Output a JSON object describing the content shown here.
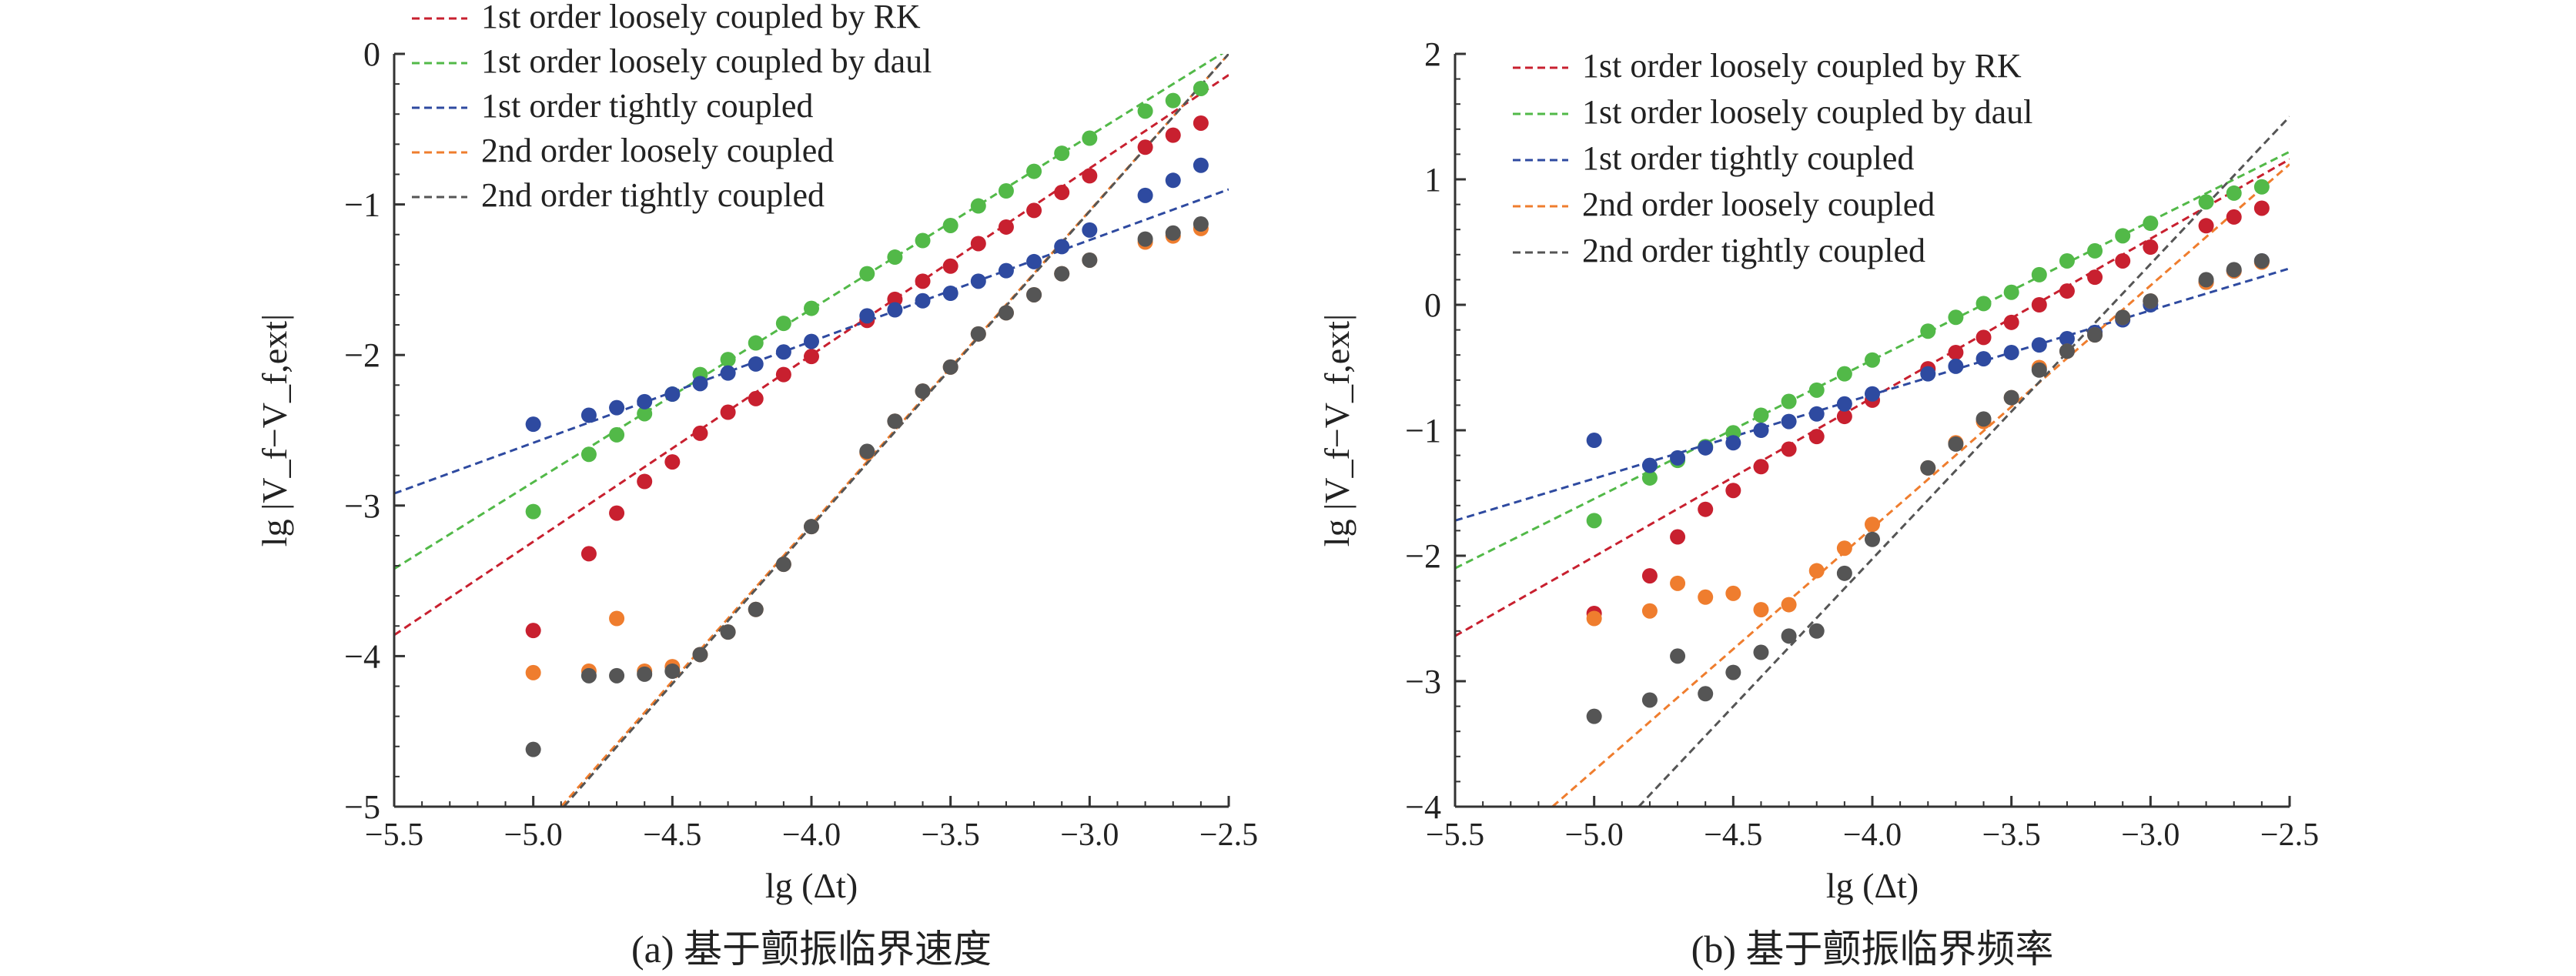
{
  "chart_data": [
    {
      "type": "scatter",
      "caption": "(a) 基于颤振临界速度",
      "xlabel": "lg (Δt)",
      "ylabel": "lg |V_f−V_f,ext|",
      "xlim": [
        -5.5,
        -2.5
      ],
      "ylim": [
        -5,
        0
      ],
      "xticks": [
        -5.5,
        -5.0,
        -4.5,
        -4.0,
        -3.5,
        -3.0,
        -2.5
      ],
      "xtick_labels": [
        "−5.5",
        "−5.0",
        "−4.5",
        "−4.0",
        "−3.5",
        "−3.0",
        "−2.5"
      ],
      "yticks": [
        -5,
        -4,
        -3,
        -2,
        -1,
        0
      ],
      "ytick_labels": [
        "−5",
        "−4",
        "−3",
        "−2",
        "−1",
        "0"
      ],
      "grid": false,
      "legend_position": "top-left",
      "series": [
        {
          "name": "1st order loosely coupled by RK",
          "color": "#c8202f",
          "x": [
            -5.0,
            -4.8,
            -4.7,
            -4.6,
            -4.5,
            -4.4,
            -4.3,
            -4.2,
            -4.1,
            -4.0,
            -3.8,
            -3.7,
            -3.6,
            -3.5,
            -3.4,
            -3.3,
            -3.2,
            -3.1,
            -3.0,
            -2.8,
            -2.7,
            -2.6
          ],
          "y": [
            -3.83,
            -3.32,
            -3.05,
            -2.84,
            -2.71,
            -2.52,
            -2.38,
            -2.29,
            -2.13,
            -2.01,
            -1.77,
            -1.63,
            -1.51,
            -1.41,
            -1.26,
            -1.15,
            -1.04,
            -0.92,
            -0.81,
            -0.62,
            -0.54,
            -0.46
          ],
          "fit": {
            "x": [
              -5.5,
              -2.5
            ],
            "y": [
              -3.86,
              -0.14
            ]
          }
        },
        {
          "name": "1st order loosely coupled by daul",
          "color": "#52b948",
          "x": [
            -5.0,
            -4.8,
            -4.7,
            -4.6,
            -4.5,
            -4.4,
            -4.3,
            -4.2,
            -4.1,
            -4.0,
            -3.8,
            -3.7,
            -3.6,
            -3.5,
            -3.4,
            -3.3,
            -3.2,
            -3.1,
            -3.0,
            -2.8,
            -2.7,
            -2.6
          ],
          "y": [
            -3.04,
            -2.66,
            -2.53,
            -2.39,
            -2.26,
            -2.13,
            -2.03,
            -1.92,
            -1.79,
            -1.69,
            -1.46,
            -1.35,
            -1.24,
            -1.14,
            -1.01,
            -0.91,
            -0.78,
            -0.66,
            -0.56,
            -0.38,
            -0.31,
            -0.23
          ],
          "fit": {
            "x": [
              -5.5,
              -2.5
            ],
            "y": [
              -3.42,
              0.03
            ]
          }
        },
        {
          "name": "1st order tightly coupled",
          "color": "#2e4aa0",
          "x": [
            -5.0,
            -4.8,
            -4.7,
            -4.6,
            -4.5,
            -4.4,
            -4.3,
            -4.2,
            -4.1,
            -4.0,
            -3.8,
            -3.7,
            -3.6,
            -3.5,
            -3.4,
            -3.3,
            -3.2,
            -3.1,
            -3.0,
            -2.8,
            -2.7,
            -2.6
          ],
          "y": [
            -2.46,
            -2.4,
            -2.35,
            -2.31,
            -2.26,
            -2.19,
            -2.12,
            -2.06,
            -1.98,
            -1.91,
            -1.74,
            -1.7,
            -1.64,
            -1.59,
            -1.51,
            -1.44,
            -1.38,
            -1.28,
            -1.17,
            -0.94,
            -0.84,
            -0.74
          ],
          "fit": {
            "x": [
              -5.5,
              -2.5
            ],
            "y": [
              -2.92,
              -0.9
            ]
          }
        },
        {
          "name": "2nd order loosely coupled",
          "color": "#ef7d2e",
          "x": [
            -5.0,
            -4.8,
            -4.7,
            -4.6,
            -4.5,
            -4.4,
            -4.3,
            -4.2,
            -4.1,
            -4.0,
            -3.8,
            -3.7,
            -3.6,
            -3.5,
            -3.4,
            -3.3,
            -3.2,
            -3.1,
            -3.0,
            -2.8,
            -2.7,
            -2.6
          ],
          "y": [
            -4.11,
            -4.1,
            -3.75,
            -4.1,
            -4.07,
            -3.99,
            -3.84,
            -3.69,
            -3.39,
            -3.14,
            -2.65,
            -2.44,
            -2.24,
            -2.08,
            -1.86,
            -1.72,
            -1.6,
            -1.46,
            -1.37,
            -1.25,
            -1.21,
            -1.16
          ],
          "fit": {
            "x": [
              -4.9,
              -2.5
            ],
            "y": [
              -5.0,
              0.0
            ]
          }
        },
        {
          "name": "2nd order tightly coupled",
          "color": "#555555",
          "x": [
            -5.0,
            -4.8,
            -4.7,
            -4.6,
            -4.5,
            -4.4,
            -4.3,
            -4.2,
            -4.1,
            -4.0,
            -3.8,
            -3.7,
            -3.6,
            -3.5,
            -3.4,
            -3.3,
            -3.2,
            -3.1,
            -3.0,
            -2.8,
            -2.7,
            -2.6
          ],
          "y": [
            -4.62,
            -4.13,
            -4.13,
            -4.12,
            -4.1,
            -3.99,
            -3.84,
            -3.69,
            -3.39,
            -3.14,
            -2.64,
            -2.44,
            -2.24,
            -2.08,
            -1.86,
            -1.72,
            -1.6,
            -1.46,
            -1.37,
            -1.23,
            -1.19,
            -1.13
          ],
          "fit": {
            "x": [
              -4.89,
              -2.5
            ],
            "y": [
              -5.0,
              0.0
            ]
          }
        }
      ]
    },
    {
      "type": "scatter",
      "caption": "(b) 基于颤振临界频率",
      "xlabel": "lg (Δt)",
      "ylabel": "lg |V_f−V_f,ext|",
      "xlim": [
        -5.5,
        -2.5
      ],
      "ylim": [
        -4,
        2
      ],
      "xticks": [
        -5.5,
        -5.0,
        -4.5,
        -4.0,
        -3.5,
        -3.0,
        -2.5
      ],
      "xtick_labels": [
        "−5.5",
        "−5.0",
        "−4.5",
        "−4.0",
        "−3.5",
        "−3.0",
        "−2.5"
      ],
      "yticks": [
        -4,
        -3,
        -2,
        -1,
        0,
        1,
        2
      ],
      "ytick_labels": [
        "−4",
        "−3",
        "−2",
        "−1",
        "0",
        "1",
        "2"
      ],
      "grid": false,
      "legend_position": "top-left",
      "series": [
        {
          "name": "1st order loosely coupled by RK",
          "color": "#c8202f",
          "x": [
            -5.0,
            -4.8,
            -4.7,
            -4.6,
            -4.5,
            -4.4,
            -4.3,
            -4.2,
            -4.1,
            -4.0,
            -3.8,
            -3.7,
            -3.6,
            -3.5,
            -3.4,
            -3.3,
            -3.2,
            -3.1,
            -3.0,
            -2.8,
            -2.7,
            -2.6
          ],
          "y": [
            -2.46,
            -2.16,
            -1.85,
            -1.63,
            -1.48,
            -1.29,
            -1.15,
            -1.05,
            -0.89,
            -0.76,
            -0.51,
            -0.38,
            -0.26,
            -0.14,
            0.0,
            0.11,
            0.22,
            0.35,
            0.46,
            0.63,
            0.7,
            0.77
          ],
          "fit": {
            "x": [
              -5.5,
              -2.5
            ],
            "y": [
              -2.64,
              1.16
            ]
          }
        },
        {
          "name": "1st order loosely coupled by daul",
          "color": "#52b948",
          "x": [
            -5.0,
            -4.8,
            -4.7,
            -4.6,
            -4.5,
            -4.4,
            -4.3,
            -4.2,
            -4.1,
            -4.0,
            -3.8,
            -3.7,
            -3.6,
            -3.5,
            -3.4,
            -3.3,
            -3.2,
            -3.1,
            -3.0,
            -2.8,
            -2.7,
            -2.6
          ],
          "y": [
            -1.72,
            -1.38,
            -1.24,
            -1.13,
            -1.02,
            -0.88,
            -0.77,
            -0.68,
            -0.55,
            -0.44,
            -0.21,
            -0.1,
            0.01,
            0.1,
            0.24,
            0.35,
            0.43,
            0.55,
            0.65,
            0.82,
            0.89,
            0.94
          ],
          "fit": {
            "x": [
              -5.5,
              -2.5
            ],
            "y": [
              -2.1,
              1.22
            ]
          }
        },
        {
          "name": "1st order tightly coupled",
          "color": "#2e4aa0",
          "x": [
            -5.0,
            -4.8,
            -4.7,
            -4.6,
            -4.5,
            -4.4,
            -4.3,
            -4.2,
            -4.1,
            -4.0,
            -3.8,
            -3.7,
            -3.6,
            -3.5,
            -3.4,
            -3.3,
            -3.2,
            -3.1,
            -3.0,
            -2.8,
            -2.7,
            -2.6
          ],
          "y": [
            -1.08,
            -1.28,
            -1.22,
            -1.14,
            -1.1,
            -1.0,
            -0.93,
            -0.87,
            -0.79,
            -0.71,
            -0.55,
            -0.49,
            -0.43,
            -0.38,
            -0.32,
            -0.27,
            -0.22,
            -0.12,
            0.0,
            0.18,
            0.27,
            0.35
          ],
          "fit": {
            "x": [
              -5.5,
              -2.5
            ],
            "y": [
              -1.72,
              0.29
            ]
          }
        },
        {
          "name": "2nd order loosely coupled",
          "color": "#ef7d2e",
          "x": [
            -5.0,
            -4.8,
            -4.7,
            -4.6,
            -4.5,
            -4.4,
            -4.3,
            -4.2,
            -4.1,
            -4.0,
            -3.8,
            -3.7,
            -3.6,
            -3.5,
            -3.4,
            -3.3,
            -3.2,
            -3.1,
            -3.0,
            -2.8,
            -2.7,
            -2.6
          ],
          "y": [
            -2.5,
            -2.44,
            -2.22,
            -2.33,
            -2.3,
            -2.43,
            -2.39,
            -2.12,
            -1.94,
            -1.75,
            -1.3,
            -1.1,
            -0.93,
            -0.74,
            -0.5,
            -0.37,
            -0.24,
            -0.1,
            0.03,
            0.18,
            0.27,
            0.34
          ],
          "fit": {
            "x": [
              -5.15,
              -2.5
            ],
            "y": [
              -4.0,
              1.12
            ]
          }
        },
        {
          "name": "2nd order tightly coupled",
          "color": "#555555",
          "x": [
            -5.0,
            -4.8,
            -4.7,
            -4.6,
            -4.5,
            -4.4,
            -4.3,
            -4.2,
            -4.1,
            -4.0,
            -3.8,
            -3.7,
            -3.6,
            -3.5,
            -3.4,
            -3.3,
            -3.2,
            -3.1,
            -3.0,
            -2.8,
            -2.7,
            -2.6
          ],
          "y": [
            -3.28,
            -3.15,
            -2.8,
            -3.1,
            -2.93,
            -2.77,
            -2.64,
            -2.6,
            -2.14,
            -1.87,
            -1.3,
            -1.11,
            -0.91,
            -0.74,
            -0.52,
            -0.37,
            -0.24,
            -0.1,
            0.03,
            0.2,
            0.28,
            0.35
          ],
          "fit": {
            "x": [
              -4.84,
              -2.5
            ],
            "y": [
              -4.0,
              1.5
            ]
          }
        }
      ]
    }
  ]
}
